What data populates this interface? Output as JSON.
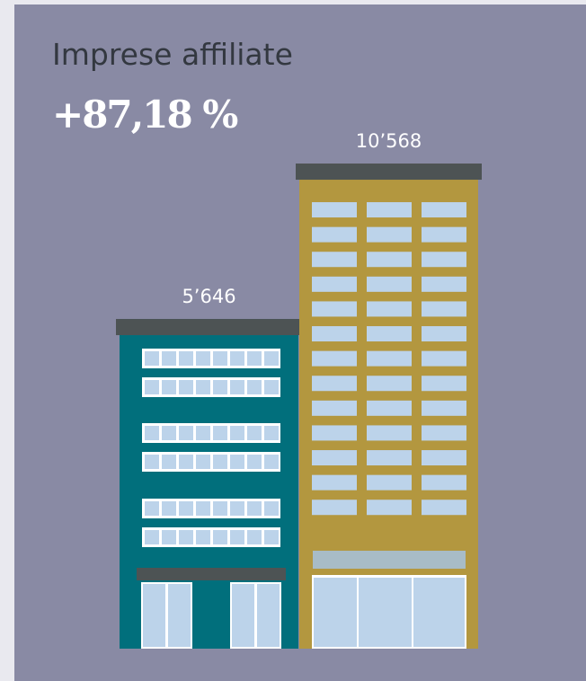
{
  "chart_data": {
    "type": "building",
    "title": "Imprese affiliate",
    "subtitle": "+87,18 %",
    "values": [
      5646,
      10568
    ],
    "value_labels": [
      "5’646",
      "10’568"
    ],
    "colors": [
      "#016f7c",
      "#b3973f"
    ]
  }
}
